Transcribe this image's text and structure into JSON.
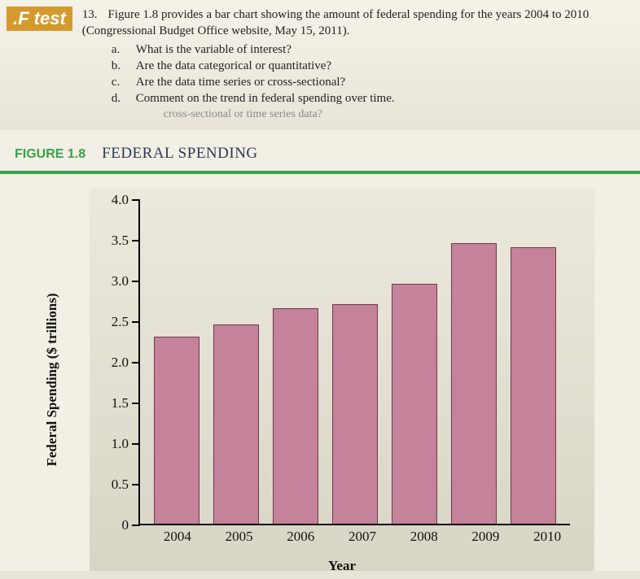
{
  "badge": ".F test",
  "question": {
    "number": "13.",
    "text": "Figure 1.8 provides a bar chart showing the amount of federal spending for the years 2004 to 2010 (Congressional Budget Office website, May 15, 2011).",
    "subs": [
      {
        "letter": "a.",
        "text": "What is the variable of interest?"
      },
      {
        "letter": "b.",
        "text": "Are the data categorical or quantitative?"
      },
      {
        "letter": "c.",
        "text": "Are the data time series or cross-sectional?"
      },
      {
        "letter": "d.",
        "text": "Comment on the trend in federal spending over time."
      }
    ],
    "ghost": "cross-sectional or time series data?"
  },
  "figure": {
    "label": "FIGURE 1.8",
    "title": "FEDERAL SPENDING",
    "chart": {
      "type": "bar",
      "ylabel": "Federal Spending ($ trillions)",
      "xlabel": "Year",
      "ylim": [
        0,
        4.0
      ],
      "yticks": [
        0,
        0.5,
        1.0,
        1.5,
        2.0,
        2.5,
        3.0,
        3.5,
        4.0
      ],
      "ytick_labels": [
        "0",
        "0.5",
        "1.0",
        "1.5",
        "2.0",
        "2.5",
        "3.0",
        "3.5",
        "4.0"
      ],
      "categories": [
        "2004",
        "2005",
        "2006",
        "2007",
        "2008",
        "2009",
        "2010"
      ],
      "values": [
        2.3,
        2.45,
        2.65,
        2.7,
        2.95,
        3.45,
        3.4
      ],
      "bar_color": "#c4839a",
      "bar_border": "#6b3a4a",
      "axis_color": "#000000",
      "background_top": "#ece8dc",
      "background_bottom": "#d9d5c6",
      "accent_rule_color": "#3aa04a",
      "label_fontsize": 17,
      "tick_fontsize": 17,
      "bar_width_ratio": 0.73
    }
  }
}
